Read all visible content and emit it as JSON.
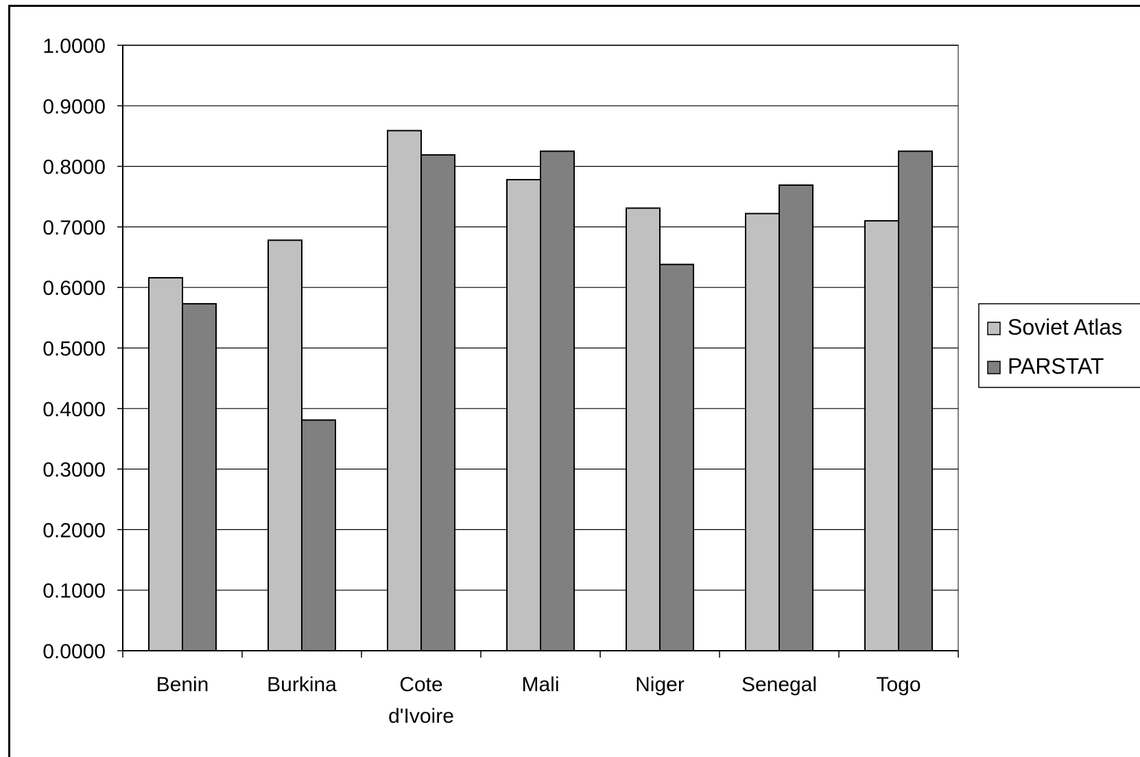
{
  "chart_data": {
    "type": "bar",
    "title": "",
    "xlabel": "",
    "ylabel": "",
    "ylim": [
      0,
      1
    ],
    "y_ticks": [
      "0.0000",
      "0.1000",
      "0.2000",
      "0.3000",
      "0.4000",
      "0.5000",
      "0.6000",
      "0.7000",
      "0.8000",
      "0.9000",
      "1.0000"
    ],
    "categories": [
      [
        "Benin"
      ],
      [
        "Burkina"
      ],
      [
        "Cote",
        "d'Ivoire"
      ],
      [
        "Mali"
      ],
      [
        "Niger"
      ],
      [
        "Senegal"
      ],
      [
        "Togo"
      ]
    ],
    "series": [
      {
        "name": "Soviet Atlas",
        "color": "#c0c0c0",
        "values": [
          0.616,
          0.678,
          0.859,
          0.778,
          0.731,
          0.722,
          0.71
        ]
      },
      {
        "name": "PARSTAT",
        "color": "#808080",
        "values": [
          0.573,
          0.381,
          0.819,
          0.825,
          0.638,
          0.769,
          0.825
        ]
      }
    ],
    "grid": true,
    "legend_position": "right"
  }
}
